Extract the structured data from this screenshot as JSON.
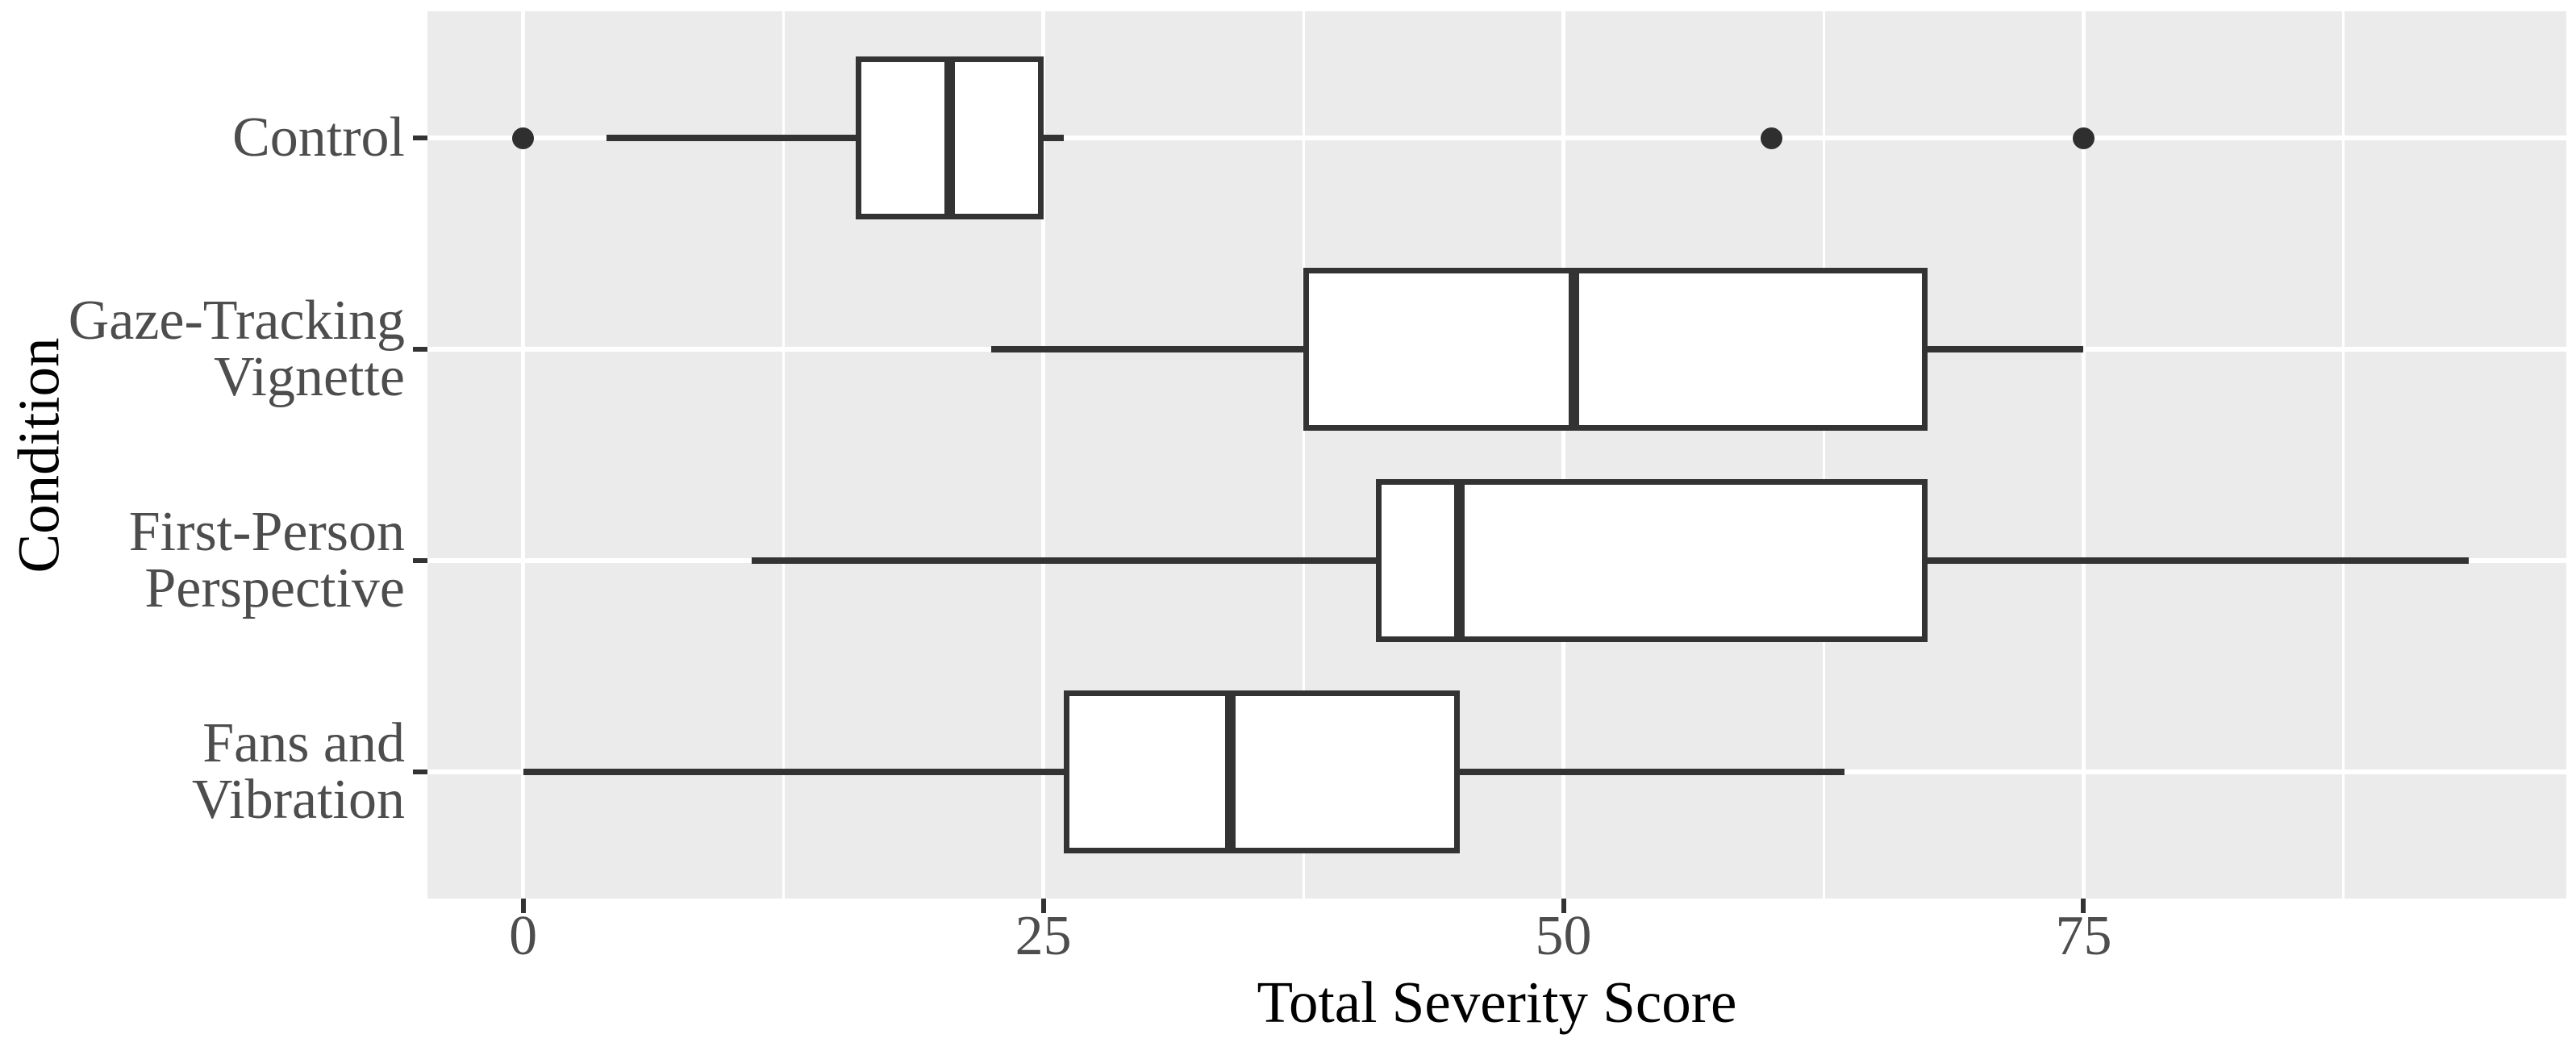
{
  "chart_data": {
    "type": "boxplot",
    "orientation": "horizontal",
    "xlabel": "Total Severity Score",
    "ylabel": "Condition",
    "x_ticks": [
      0,
      25,
      50,
      75
    ],
    "x_tick_labels": [
      "0",
      "25",
      "50",
      "75"
    ],
    "x_minor_ticks": [
      12.5,
      37.5,
      62.5,
      87.5
    ],
    "xlim": [
      -4.6,
      98.2
    ],
    "grid": true,
    "legend": "none",
    "categories": [
      "Control",
      "Gaze-Tracking Vignette",
      "First-Person Perspective",
      "Fans and Vibration"
    ],
    "category_label_lines": [
      [
        "Control"
      ],
      [
        "Gaze-Tracking",
        "Vignette"
      ],
      [
        "First-Person",
        "Perspective"
      ],
      [
        "Fans and",
        "Vibration"
      ]
    ],
    "series": [
      {
        "category": "Control",
        "whisker_low": 4,
        "q1": 16,
        "median": 20.5,
        "q3": 25,
        "whisker_high": 26,
        "outliers": [
          0,
          60,
          75
        ]
      },
      {
        "category": "Gaze-Tracking Vignette",
        "whisker_low": 22.5,
        "q1": 37.5,
        "median": 50.5,
        "q3": 67.5,
        "whisker_high": 75,
        "outliers": []
      },
      {
        "category": "First-Person Perspective",
        "whisker_low": 11,
        "q1": 41,
        "median": 45,
        "q3": 67.5,
        "whisker_high": 93.5,
        "outliers": []
      },
      {
        "category": "Fans and Vibration",
        "whisker_low": 0,
        "q1": 26,
        "median": 34,
        "q3": 45,
        "whisker_high": 63.5,
        "outliers": []
      }
    ],
    "colors": {
      "panel_bg": "#EBEBEB",
      "grid": "#FFFFFF",
      "box_stroke": "#333333",
      "box_fill": "#FFFFFF",
      "outlier": "#2F2F2F",
      "tick_mark": "#333333",
      "tick_label": "#4D4D4D",
      "axis_title": "#000000"
    }
  }
}
